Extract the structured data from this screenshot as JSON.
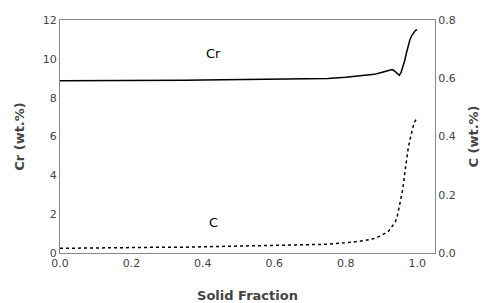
{
  "chart_data": {
    "type": "line",
    "xlabel": "Solid Fraction",
    "ylabel": "Cr (wt.%)",
    "y2label": "C (wt.%)",
    "x": [
      0.0,
      0.05,
      0.1,
      0.15,
      0.2,
      0.25,
      0.3,
      0.35,
      0.4,
      0.45,
      0.5,
      0.55,
      0.6,
      0.65,
      0.7,
      0.75,
      0.8,
      0.85,
      0.88,
      0.9,
      0.92,
      0.93,
      0.935,
      0.94,
      0.945,
      0.95,
      0.955,
      0.96,
      0.965,
      0.97,
      0.975,
      0.98,
      0.985,
      0.99,
      0.995,
      1.0
    ],
    "series": [
      {
        "color": "#000000",
        "line_style": "solid",
        "values": [
          8.87,
          8.87,
          8.87,
          8.88,
          8.88,
          8.89,
          8.9,
          8.9,
          8.91,
          8.92,
          8.93,
          8.94,
          8.95,
          8.96,
          8.97,
          8.99,
          9.05,
          9.12,
          9.2,
          9.3,
          9.4,
          9.45,
          9.4,
          9.3,
          9.2,
          9.15,
          9.3,
          9.55,
          9.9,
          10.3,
          10.7,
          11.0,
          11.2,
          11.35,
          11.45,
          11.5
        ]
      },
      {
        "color": "#000000",
        "line_style": "dotted",
        "axis": "y2",
        "values": [
          0.016,
          0.017,
          0.017,
          0.018,
          0.018,
          0.019,
          0.02,
          0.02,
          0.021,
          0.022,
          0.023,
          0.024,
          0.025,
          0.026,
          0.028,
          0.03,
          0.035,
          0.042,
          0.05,
          0.06,
          0.075,
          0.09,
          0.1,
          0.11,
          0.13,
          0.16,
          0.19,
          0.22,
          0.27,
          0.32,
          0.36,
          0.39,
          0.42,
          0.44,
          0.455,
          0.46
        ]
      }
    ],
    "xlim": [
      0.0,
      1.05
    ],
    "xticks": [
      {
        "value": 0,
        "label": "0.0"
      },
      0.2,
      0.4,
      0.6,
      0.8,
      {
        "value": 1,
        "label": "1.0"
      }
    ],
    "ylim": [
      0,
      12
    ],
    "yticks": [
      0,
      2,
      4,
      6,
      8,
      10,
      12
    ],
    "y2lim": [
      0,
      0.8
    ],
    "y2ticks": [
      {
        "value": 0,
        "label": "0.0"
      },
      0.2,
      0.4,
      0.6,
      0.8
    ],
    "annotations": [
      {
        "text": "Cr",
        "x": 0.43,
        "y": 9.8,
        "color": "#000000"
      },
      {
        "text": "C",
        "x": 0.43,
        "y": 1.1,
        "color": "#000000"
      }
    ],
    "grid": false
  }
}
